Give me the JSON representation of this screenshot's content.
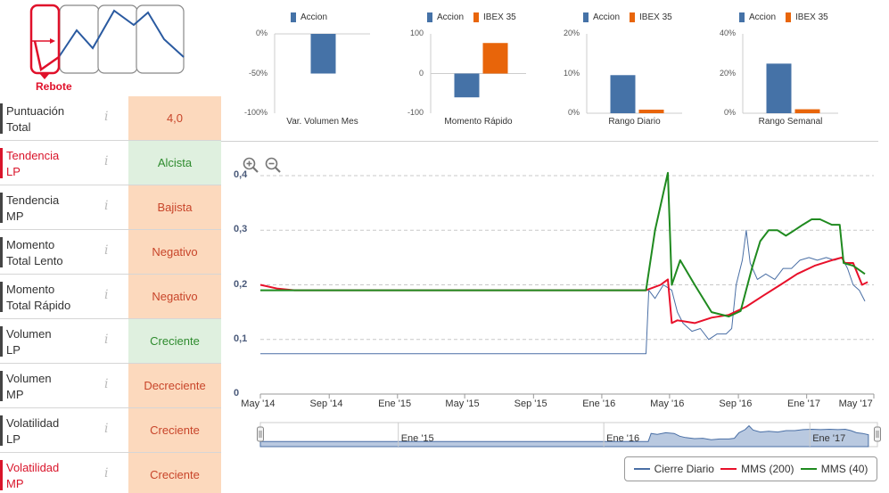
{
  "logo": {
    "label": "Rebote"
  },
  "rows": [
    {
      "label_1": "Puntuación",
      "label_2": "Total",
      "value": "4,0",
      "style": "orange",
      "bar": "dark"
    },
    {
      "label_1": "Tendencia",
      "label_2": "LP",
      "value": "Alcista",
      "style": "green",
      "bar": "red"
    },
    {
      "label_1": "Tendencia",
      "label_2": "MP",
      "value": "Bajista",
      "style": "orange",
      "bar": "dark"
    },
    {
      "label_1": "Momento",
      "label_2": "Total Lento",
      "value": "Negativo",
      "style": "orange",
      "bar": "dark"
    },
    {
      "label_1": "Momento",
      "label_2": "Total Rápido",
      "value": "Negativo",
      "style": "orange",
      "bar": "dark"
    },
    {
      "label_1": "Volumen",
      "label_2": "LP",
      "value": "Creciente",
      "style": "green",
      "bar": "dark"
    },
    {
      "label_1": "Volumen",
      "label_2": "MP",
      "value": "Decreciente",
      "style": "orange",
      "bar": "dark"
    },
    {
      "label_1": "Volatilidad",
      "label_2": "LP",
      "value": "Creciente",
      "style": "orange",
      "bar": "dark"
    },
    {
      "label_1": "Volatilidad",
      "label_2": "MP",
      "value": "Creciente",
      "style": "orange",
      "bar": "red"
    }
  ],
  "info_glyph": "i",
  "colors": {
    "accion": "#4572a7",
    "ibex": "#e8650a",
    "cierre": "#4a6fa5",
    "mms200": "#e8102a",
    "mms40": "#1f8a1f"
  },
  "chart_data": [
    {
      "type": "bar",
      "title": "Var. Volumen Mes",
      "series": [
        {
          "name": "Accion",
          "values": [
            -50
          ]
        }
      ],
      "yticks": [
        "0%",
        "-50%",
        "-100%"
      ],
      "ylim": [
        -100,
        0
      ]
    },
    {
      "type": "bar",
      "title": "Momento Rápido",
      "series": [
        {
          "name": "Accion",
          "values": [
            -60
          ]
        },
        {
          "name": "IBEX 35",
          "values": [
            77
          ]
        }
      ],
      "yticks": [
        "100",
        "0",
        "-100"
      ],
      "ylim": [
        -100,
        100
      ]
    },
    {
      "type": "bar",
      "title": "Rango Diario",
      "series": [
        {
          "name": "Accion",
          "values": [
            9.6
          ]
        },
        {
          "name": "IBEX 35",
          "values": [
            0.9
          ]
        }
      ],
      "yticks": [
        "20%",
        "10%",
        "0%"
      ],
      "ylim": [
        0,
        20
      ]
    },
    {
      "type": "bar",
      "title": "Rango Semanal",
      "series": [
        {
          "name": "Accion",
          "values": [
            25
          ]
        },
        {
          "name": "IBEX 35",
          "values": [
            2
          ]
        }
      ],
      "yticks": [
        "40%",
        "20%",
        "0%"
      ],
      "ylim": [
        0,
        40
      ]
    },
    {
      "type": "line",
      "x": [
        "2014-05",
        "2014-09",
        "2015-01",
        "2015-05",
        "2015-09",
        "2016-01",
        "2016-05",
        "2016-09",
        "2017-01",
        "2017-05"
      ],
      "xticks": [
        "May '14",
        "Sep '14",
        "Ene '15",
        "May '15",
        "Sep '15",
        "Ene '16",
        "May '16",
        "Sep '16",
        "Ene '17",
        "May '17"
      ],
      "yticks": [
        "0,4",
        "0,3",
        "0,2",
        "0,1",
        "0"
      ],
      "ylim": [
        0,
        0.4
      ],
      "grid": true,
      "legend": "bottom-right",
      "series": [
        {
          "name": "Cierre Diario",
          "points": [
            [
              "2014-05-01",
              0.074
            ],
            [
              "2016-03-20",
              0.074
            ],
            [
              "2016-03-25",
              0.19
            ],
            [
              "2016-04-05",
              0.175
            ],
            [
              "2016-04-20",
              0.2
            ],
            [
              "2016-05-05",
              0.19
            ],
            [
              "2016-05-15",
              0.15
            ],
            [
              "2016-05-25",
              0.13
            ],
            [
              "2016-06-10",
              0.115
            ],
            [
              "2016-06-25",
              0.12
            ],
            [
              "2016-07-10",
              0.1
            ],
            [
              "2016-07-25",
              0.11
            ],
            [
              "2016-08-10",
              0.11
            ],
            [
              "2016-08-20",
              0.12
            ],
            [
              "2016-08-28",
              0.2
            ],
            [
              "2016-09-08",
              0.245
            ],
            [
              "2016-09-15",
              0.3
            ],
            [
              "2016-09-22",
              0.24
            ],
            [
              "2016-10-05",
              0.21
            ],
            [
              "2016-10-20",
              0.22
            ],
            [
              "2016-11-05",
              0.21
            ],
            [
              "2016-11-20",
              0.23
            ],
            [
              "2016-12-05",
              0.23
            ],
            [
              "2016-12-20",
              0.245
            ],
            [
              "2017-01-05",
              0.25
            ],
            [
              "2017-01-20",
              0.245
            ],
            [
              "2017-02-05",
              0.25
            ],
            [
              "2017-02-20",
              0.245
            ],
            [
              "2017-03-05",
              0.25
            ],
            [
              "2017-03-15",
              0.23
            ],
            [
              "2017-03-25",
              0.2
            ],
            [
              "2017-04-05",
              0.19
            ],
            [
              "2017-04-15",
              0.17
            ]
          ]
        },
        {
          "name": "MMS (200)",
          "points": [
            [
              "2014-05-01",
              0.2
            ],
            [
              "2014-06-01",
              0.193
            ],
            [
              "2014-07-01",
              0.19
            ],
            [
              "2016-03-20",
              0.19
            ],
            [
              "2016-04-15",
              0.2
            ],
            [
              "2016-04-28",
              0.21
            ],
            [
              "2016-05-05",
              0.13
            ],
            [
              "2016-05-15",
              0.135
            ],
            [
              "2016-06-15",
              0.13
            ],
            [
              "2016-07-15",
              0.14
            ],
            [
              "2016-08-15",
              0.145
            ],
            [
              "2016-09-15",
              0.16
            ],
            [
              "2016-10-15",
              0.18
            ],
            [
              "2016-11-15",
              0.2
            ],
            [
              "2016-12-15",
              0.22
            ],
            [
              "2017-01-15",
              0.235
            ],
            [
              "2017-02-15",
              0.245
            ],
            [
              "2017-03-05",
              0.25
            ],
            [
              "2017-03-10",
              0.24
            ],
            [
              "2017-03-25",
              0.24
            ],
            [
              "2017-04-10",
              0.2
            ],
            [
              "2017-04-20",
              0.205
            ]
          ]
        },
        {
          "name": "MMS (40)",
          "points": [
            [
              "2014-05-01",
              0.19
            ],
            [
              "2016-03-20",
              0.19
            ],
            [
              "2016-04-05",
              0.3
            ],
            [
              "2016-04-28",
              0.405
            ],
            [
              "2016-05-05",
              0.2
            ],
            [
              "2016-05-20",
              0.245
            ],
            [
              "2016-06-15",
              0.2
            ],
            [
              "2016-07-15",
              0.15
            ],
            [
              "2016-08-15",
              0.142
            ],
            [
              "2016-09-05",
              0.152
            ],
            [
              "2016-09-25",
              0.23
            ],
            [
              "2016-10-10",
              0.28
            ],
            [
              "2016-10-25",
              0.3
            ],
            [
              "2016-11-10",
              0.3
            ],
            [
              "2016-11-25",
              0.29
            ],
            [
              "2016-12-10",
              0.3
            ],
            [
              "2016-12-25",
              0.31
            ],
            [
              "2017-01-10",
              0.32
            ],
            [
              "2017-01-25",
              0.32
            ],
            [
              "2017-02-15",
              0.31
            ],
            [
              "2017-03-01",
              0.31
            ],
            [
              "2017-03-08",
              0.24
            ],
            [
              "2017-03-25",
              0.235
            ],
            [
              "2017-04-15",
              0.22
            ]
          ]
        }
      ],
      "navigator": {
        "labels": [
          "Ene '15",
          "Ene '16",
          "Ene '17"
        ]
      }
    }
  ]
}
